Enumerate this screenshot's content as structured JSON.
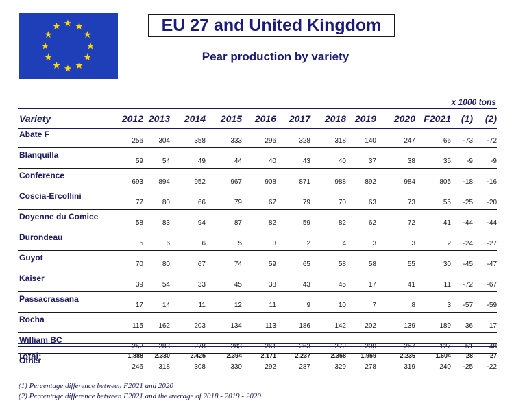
{
  "title": "EU 27 and United Kingdom",
  "subtitle": "Pear production by variety",
  "units": "x 1000 tons",
  "columns": [
    "Variety",
    "2012",
    "2013",
    "2014",
    "2015",
    "2016",
    "2017",
    "2018",
    "2019",
    "2020",
    "F2021",
    "(1)",
    "(2)"
  ],
  "rows": [
    {
      "variety": "Abate F",
      "values": [
        "256",
        "304",
        "358",
        "333",
        "296",
        "328",
        "318",
        "140",
        "247",
        "66",
        "-73",
        "-72"
      ]
    },
    {
      "variety": "Blanquilla",
      "values": [
        "59",
        "54",
        "49",
        "44",
        "40",
        "43",
        "40",
        "37",
        "38",
        "35",
        "-9",
        "-9"
      ]
    },
    {
      "variety": "Conference",
      "values": [
        "693",
        "894",
        "952",
        "967",
        "908",
        "871",
        "988",
        "892",
        "984",
        "805",
        "-18",
        "-16"
      ]
    },
    {
      "variety": "Coscia-Ercollini",
      "values": [
        "77",
        "80",
        "66",
        "79",
        "67",
        "79",
        "70",
        "63",
        "73",
        "55",
        "-25",
        "-20"
      ]
    },
    {
      "variety": "Doyenne du Comice",
      "values": [
        "58",
        "83",
        "94",
        "87",
        "82",
        "59",
        "82",
        "62",
        "72",
        "41",
        "-44",
        "-44"
      ]
    },
    {
      "variety": "Durondeau",
      "values": [
        "5",
        "6",
        "6",
        "5",
        "3",
        "2",
        "4",
        "3",
        "3",
        "2",
        "-24",
        "-27"
      ]
    },
    {
      "variety": "Guyot",
      "values": [
        "70",
        "80",
        "67",
        "74",
        "59",
        "65",
        "58",
        "58",
        "55",
        "30",
        "-45",
        "-47"
      ]
    },
    {
      "variety": "Kaiser",
      "values": [
        "39",
        "54",
        "33",
        "45",
        "38",
        "43",
        "45",
        "17",
        "41",
        "11",
        "-72",
        "-67"
      ]
    },
    {
      "variety": "Passacrassana",
      "values": [
        "17",
        "14",
        "11",
        "12",
        "11",
        "9",
        "10",
        "7",
        "8",
        "3",
        "-57",
        "-59"
      ]
    },
    {
      "variety": "Rocha",
      "values": [
        "115",
        "162",
        "203",
        "134",
        "113",
        "186",
        "142",
        "202",
        "139",
        "189",
        "36",
        "17"
      ]
    },
    {
      "variety": "William BC",
      "values": [
        "252",
        "283",
        "278",
        "283",
        "261",
        "263",
        "272",
        "200",
        "257",
        "127",
        "-51",
        "-48"
      ]
    },
    {
      "variety": "Other",
      "values": [
        "246",
        "318",
        "308",
        "330",
        "292",
        "287",
        "329",
        "278",
        "319",
        "240",
        "-25",
        "-22"
      ]
    }
  ],
  "total": {
    "label": "Total:",
    "values": [
      "1.888",
      "2.330",
      "2.425",
      "2.394",
      "2.171",
      "2.237",
      "2.358",
      "1.959",
      "2.236",
      "1.604",
      "-28",
      "-27"
    ]
  },
  "footnotes": [
    "(1) Percentage difference between F2021 and 2020",
    "(2) Percentage difference between F2021 and the average of 2018 - 2019 - 2020"
  ],
  "colors": {
    "flag_blue": "#1f3fb8",
    "star_yellow": "#ffd700",
    "text_navy": "#1a1a5e"
  },
  "icons": {
    "flag": "eu-flag-icon"
  }
}
